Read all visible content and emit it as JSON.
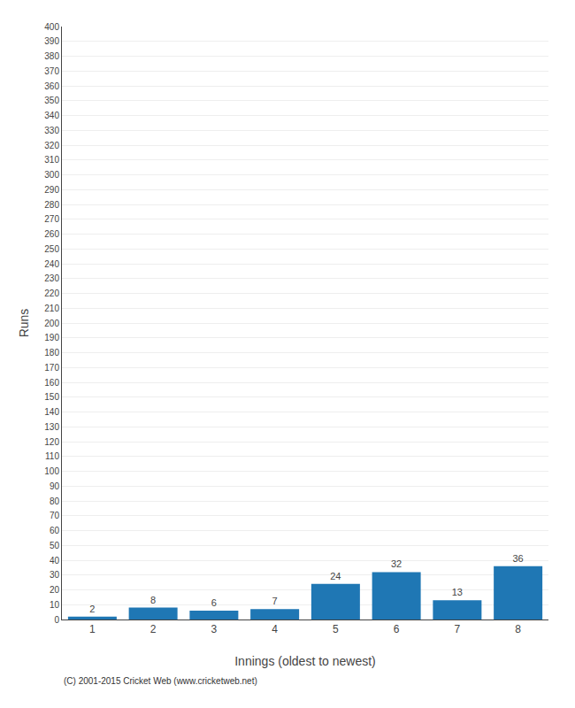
{
  "chart_data": {
    "type": "bar",
    "categories": [
      "1",
      "2",
      "3",
      "4",
      "5",
      "6",
      "7",
      "8"
    ],
    "values": [
      2,
      8,
      6,
      7,
      24,
      32,
      13,
      36
    ],
    "xlabel": "Innings (oldest to newest)",
    "ylabel": "Runs",
    "ylim": [
      0,
      400
    ],
    "yticks": [
      0,
      10,
      20,
      30,
      40,
      50,
      60,
      70,
      80,
      90,
      100,
      110,
      120,
      130,
      140,
      150,
      160,
      170,
      180,
      190,
      200,
      210,
      220,
      230,
      240,
      250,
      260,
      270,
      280,
      290,
      300,
      310,
      320,
      330,
      340,
      350,
      360,
      370,
      380,
      390,
      400
    ],
    "grid": true,
    "data_labels": true,
    "annotations": [
      "(C) 2001-2015 Cricket Web (www.cricketweb.net)"
    ]
  }
}
